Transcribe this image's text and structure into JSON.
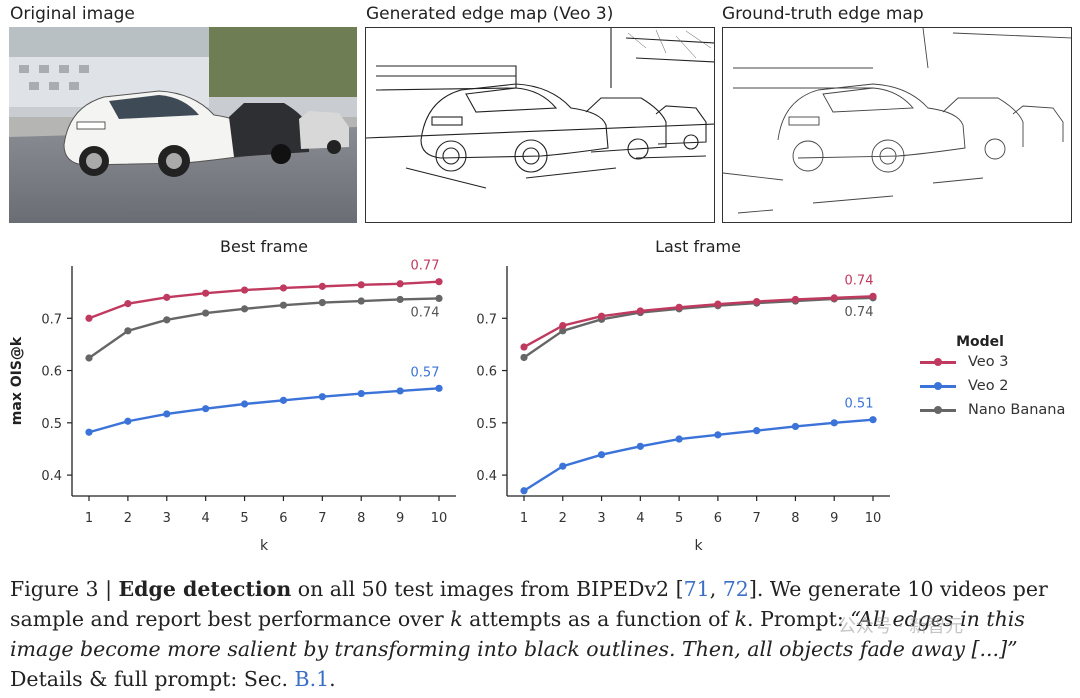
{
  "panels": {
    "original": "Original image",
    "generated": "Generated edge map (Veo 3)",
    "ground_truth": "Ground-truth edge map"
  },
  "chart_data": [
    {
      "type": "line",
      "title": "Best frame",
      "xlabel": "k",
      "ylabel": "max OIS@k",
      "x": [
        1,
        2,
        3,
        4,
        5,
        6,
        7,
        8,
        9,
        10
      ],
      "ylim": [
        0.36,
        0.8
      ],
      "yticks": [
        "0.4",
        "0.5",
        "0.6",
        "0.7"
      ],
      "xticks": [
        "1",
        "2",
        "3",
        "4",
        "5",
        "6",
        "7",
        "8",
        "9",
        "10"
      ],
      "series": [
        {
          "name": "Veo 3",
          "color": "#c0395f",
          "values": [
            0.7,
            0.728,
            0.74,
            0.748,
            0.754,
            0.758,
            0.761,
            0.764,
            0.766,
            0.77
          ],
          "end_label": "0.77"
        },
        {
          "name": "Veo 2",
          "color": "#3b73d8",
          "values": [
            0.482,
            0.503,
            0.517,
            0.527,
            0.536,
            0.543,
            0.55,
            0.556,
            0.561,
            0.566
          ],
          "end_label": "0.57"
        },
        {
          "name": "Nano Banana",
          "color": "#666666",
          "values": [
            0.624,
            0.676,
            0.697,
            0.71,
            0.718,
            0.725,
            0.73,
            0.733,
            0.736,
            0.738
          ],
          "end_label": "0.74"
        }
      ]
    },
    {
      "type": "line",
      "title": "Last frame",
      "xlabel": "k",
      "ylabel": "",
      "x": [
        1,
        2,
        3,
        4,
        5,
        6,
        7,
        8,
        9,
        10
      ],
      "ylim": [
        0.36,
        0.8
      ],
      "yticks": [
        "0.4",
        "0.5",
        "0.6",
        "0.7"
      ],
      "xticks": [
        "1",
        "2",
        "3",
        "4",
        "5",
        "6",
        "7",
        "8",
        "9",
        "10"
      ],
      "series": [
        {
          "name": "Veo 3",
          "color": "#c0395f",
          "values": [
            0.645,
            0.686,
            0.704,
            0.714,
            0.721,
            0.727,
            0.732,
            0.736,
            0.739,
            0.742
          ],
          "end_label": "0.74"
        },
        {
          "name": "Veo 2",
          "color": "#3b73d8",
          "values": [
            0.37,
            0.417,
            0.439,
            0.455,
            0.469,
            0.477,
            0.485,
            0.493,
            0.5,
            0.506
          ],
          "end_label": "0.51"
        },
        {
          "name": "Nano Banana",
          "color": "#666666",
          "values": [
            0.625,
            0.676,
            0.698,
            0.711,
            0.718,
            0.724,
            0.729,
            0.733,
            0.737,
            0.739
          ],
          "end_label": "0.74"
        }
      ]
    }
  ],
  "legend": {
    "title": "Model",
    "items": [
      {
        "label": "Veo 3",
        "color": "#c0395f"
      },
      {
        "label": "Veo 2",
        "color": "#3b73d8"
      },
      {
        "label": "Nano Banana",
        "color": "#666666"
      }
    ]
  },
  "caption": {
    "fig": "Figure 3 | ",
    "bold": "Edge detection",
    "t1": " on all 50 test images from BIPEDv2 [",
    "ref1": "71",
    "t2": ", ",
    "ref2": "72",
    "t3": "]. We generate 10 videos per sample and report best performance over ",
    "k1": "k",
    "t4": " attempts as a function of ",
    "k2": "k",
    "t5": ". Prompt: ",
    "prompt": "“All edges in this image become more salient by transforming into black outlines. Then, all objects fade away [...]”",
    "t6": " Details & full prompt: Sec. ",
    "ref3": "B.1",
    "t7": "."
  },
  "watermark": "公众号 · 新智元"
}
